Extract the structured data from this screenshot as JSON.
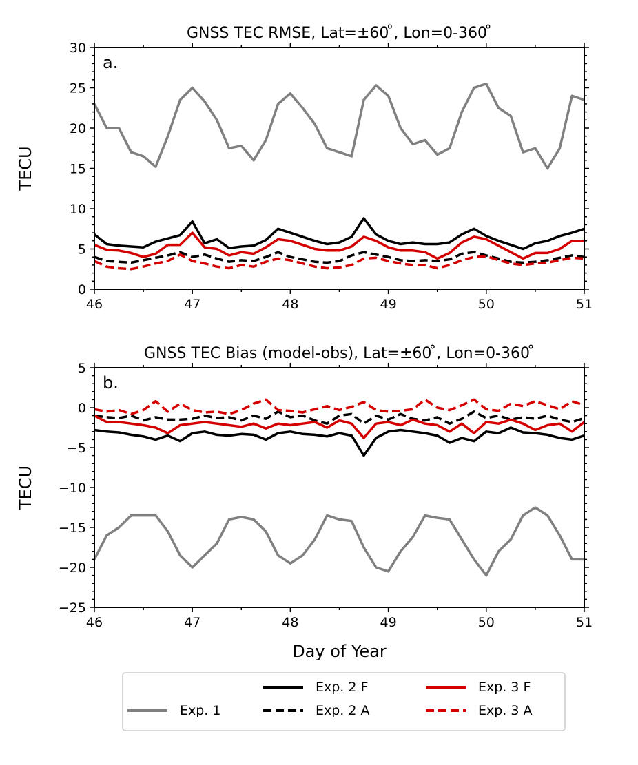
{
  "chart_data": [
    {
      "type": "line",
      "title": "GNSS TEC RMSE, Lat=±60 ̊, Lon=0-360 ̊",
      "panel_label": "a.",
      "xlabel": "",
      "ylabel": "TECU",
      "xlim": [
        46,
        51
      ],
      "ylim": [
        0,
        30
      ],
      "xticks": [
        46,
        47,
        48,
        49,
        50,
        51
      ],
      "yticks": [
        0,
        5,
        10,
        15,
        20,
        25,
        30
      ],
      "grid": false,
      "x": [
        46,
        46.125,
        46.25,
        46.375,
        46.5,
        46.625,
        46.75,
        46.875,
        47,
        47.125,
        47.25,
        47.375,
        47.5,
        47.625,
        47.75,
        47.875,
        48,
        48.125,
        48.25,
        48.375,
        48.5,
        48.625,
        48.75,
        48.875,
        49,
        49.125,
        49.25,
        49.375,
        49.5,
        49.625,
        49.75,
        49.875,
        50,
        50.125,
        50.25,
        50.375,
        50.5,
        50.625,
        50.75,
        50.875,
        51
      ],
      "series": [
        {
          "name": "Exp. 1",
          "color": "#808080",
          "dash": "solid",
          "values": [
            23,
            20,
            20,
            17,
            16.5,
            15.2,
            19,
            23.5,
            25,
            23.3,
            21,
            17.5,
            17.8,
            16,
            18.5,
            23,
            24.3,
            22.5,
            20.5,
            17.5,
            17,
            16.5,
            23.5,
            25.3,
            24,
            20,
            18,
            18.5,
            16.7,
            17.5,
            22,
            25,
            25.5,
            22.5,
            21.5,
            17,
            17.5,
            15,
            17.5,
            24,
            23.5
          ]
        },
        {
          "name": "Exp. 2 F",
          "color": "#000000",
          "dash": "solid",
          "values": [
            6.8,
            5.6,
            5.4,
            5.3,
            5.2,
            5.9,
            6.3,
            6.7,
            8.4,
            5.7,
            6.2,
            5.1,
            5.3,
            5.4,
            6.1,
            7.5,
            7.0,
            6.5,
            6.0,
            5.6,
            5.8,
            6.5,
            8.8,
            6.8,
            6.0,
            5.6,
            5.8,
            5.6,
            5.6,
            5.8,
            6.8,
            7.5,
            6.6,
            6.0,
            5.5,
            5.0,
            5.7,
            6.0,
            6.6,
            7.0,
            7.5
          ]
        },
        {
          "name": "Exp. 2 A",
          "color": "#000000",
          "dash": "dashed",
          "values": [
            4.0,
            3.5,
            3.4,
            3.3,
            3.6,
            3.9,
            4.2,
            4.6,
            4.0,
            4.3,
            3.8,
            3.4,
            3.6,
            3.5,
            4.0,
            4.6,
            4.0,
            3.7,
            3.4,
            3.3,
            3.5,
            4.2,
            4.6,
            4.3,
            4.0,
            3.6,
            3.5,
            3.6,
            3.5,
            3.7,
            4.4,
            4.6,
            4.2,
            3.8,
            3.4,
            3.3,
            3.4,
            3.6,
            3.9,
            4.2,
            4.0
          ]
        },
        {
          "name": "Exp. 3 F",
          "color": "#d40000",
          "dash": "solid",
          "values": [
            5.5,
            4.9,
            4.8,
            4.5,
            4.0,
            4.4,
            5.5,
            5.5,
            7.0,
            5.2,
            5.0,
            4.2,
            4.6,
            4.4,
            5.2,
            6.2,
            6.0,
            5.5,
            5.0,
            4.8,
            4.8,
            5.3,
            6.5,
            6.0,
            5.2,
            4.8,
            4.8,
            4.6,
            3.8,
            4.5,
            5.8,
            6.5,
            6.2,
            5.4,
            4.6,
            3.8,
            4.5,
            4.5,
            5.0,
            6.0,
            6.0
          ]
        },
        {
          "name": "Exp. 3 A",
          "color": "#d40000",
          "dash": "dashed",
          "values": [
            3.5,
            2.8,
            2.6,
            2.5,
            2.8,
            3.2,
            3.5,
            4.3,
            3.5,
            3.2,
            2.8,
            2.6,
            3.0,
            2.8,
            3.4,
            3.8,
            3.6,
            3.2,
            2.8,
            2.6,
            2.7,
            3.0,
            3.8,
            3.9,
            3.5,
            3.2,
            3.0,
            3.0,
            2.6,
            3.0,
            3.6,
            4.0,
            4.1,
            3.6,
            3.2,
            3.0,
            3.2,
            3.3,
            3.6,
            3.9,
            3.8
          ]
        }
      ]
    },
    {
      "type": "line",
      "title": "GNSS TEC Bias (model-obs), Lat=±60 ̊, Lon=0-360 ̊",
      "panel_label": "b.",
      "xlabel": "Day of Year",
      "ylabel": "TECU",
      "xlim": [
        46,
        51
      ],
      "ylim": [
        -25,
        5
      ],
      "xticks": [
        46,
        47,
        48,
        49,
        50,
        51
      ],
      "yticks": [
        -25,
        -20,
        -15,
        -10,
        -5,
        0,
        5
      ],
      "grid": false,
      "x": [
        46,
        46.125,
        46.25,
        46.375,
        46.5,
        46.625,
        46.75,
        46.875,
        47,
        47.125,
        47.25,
        47.375,
        47.5,
        47.625,
        47.75,
        47.875,
        48,
        48.125,
        48.25,
        48.375,
        48.5,
        48.625,
        48.75,
        48.875,
        49,
        49.125,
        49.25,
        49.375,
        49.5,
        49.625,
        49.75,
        49.875,
        50,
        50.125,
        50.25,
        50.375,
        50.5,
        50.625,
        50.75,
        50.875,
        51
      ],
      "series": [
        {
          "name": "Exp. 1",
          "color": "#808080",
          "dash": "solid",
          "values": [
            -19,
            -16,
            -15,
            -13.5,
            -13.5,
            -13.5,
            -15.5,
            -18.5,
            -20,
            -18.5,
            -17,
            -14,
            -13.7,
            -14,
            -15.5,
            -18.5,
            -19.5,
            -18.5,
            -16.5,
            -13.5,
            -14,
            -14.2,
            -17.5,
            -20,
            -20.5,
            -18,
            -16.2,
            -13.5,
            -13.8,
            -14,
            -16.5,
            -19,
            -21,
            -18,
            -16.5,
            -13.5,
            -12.5,
            -13.5,
            -16,
            -19,
            -19
          ]
        },
        {
          "name": "Exp. 2 F",
          "color": "#000000",
          "dash": "solid",
          "values": [
            -2.8,
            -3.0,
            -3.1,
            -3.4,
            -3.6,
            -4.0,
            -3.5,
            -4.2,
            -3.2,
            -3.0,
            -3.4,
            -3.5,
            -3.3,
            -3.4,
            -4.0,
            -3.2,
            -3.0,
            -3.3,
            -3.4,
            -3.6,
            -3.2,
            -3.5,
            -6.0,
            -3.8,
            -3.0,
            -2.8,
            -3.0,
            -3.2,
            -3.5,
            -4.4,
            -3.8,
            -4.2,
            -3.0,
            -3.2,
            -2.5,
            -3.1,
            -3.2,
            -3.4,
            -3.8,
            -4.0,
            -3.5
          ]
        },
        {
          "name": "Exp. 2 A",
          "color": "#000000",
          "dash": "dashed",
          "values": [
            -1.0,
            -1.2,
            -1.3,
            -1.0,
            -1.6,
            -1.2,
            -1.5,
            -1.5,
            -1.4,
            -1.0,
            -1.3,
            -1.2,
            -1.6,
            -1.0,
            -1.4,
            -0.5,
            -1.2,
            -1.0,
            -1.6,
            -2.0,
            -1.0,
            -0.8,
            -2.0,
            -1.0,
            -1.5,
            -0.8,
            -1.4,
            -1.6,
            -1.2,
            -2.0,
            -1.4,
            -0.5,
            -1.3,
            -1.0,
            -1.5,
            -1.2,
            -1.4,
            -1.0,
            -1.5,
            -1.8,
            -1.3
          ]
        },
        {
          "name": "Exp. 3 F",
          "color": "#d40000",
          "dash": "solid",
          "values": [
            -1.0,
            -1.8,
            -1.8,
            -2.0,
            -2.2,
            -2.5,
            -3.2,
            -2.2,
            -2.0,
            -1.8,
            -2.0,
            -2.2,
            -2.4,
            -2.0,
            -2.6,
            -2.0,
            -2.2,
            -2.0,
            -1.8,
            -2.5,
            -1.6,
            -2.0,
            -3.8,
            -2.0,
            -1.8,
            -2.2,
            -1.5,
            -2.0,
            -2.2,
            -3.0,
            -2.0,
            -3.2,
            -1.8,
            -2.0,
            -1.5,
            -2.0,
            -2.8,
            -2.2,
            -2.0,
            -3.0,
            -1.8
          ]
        },
        {
          "name": "Exp. 3 A",
          "color": "#d40000",
          "dash": "dashed",
          "values": [
            -0.2,
            -0.5,
            -0.3,
            -0.8,
            -0.3,
            0.8,
            -0.5,
            0.5,
            -0.3,
            -0.6,
            -0.5,
            -0.8,
            -0.3,
            0.5,
            1.0,
            -0.3,
            -0.4,
            -0.6,
            -0.2,
            0.2,
            -0.3,
            0.1,
            0.7,
            -0.3,
            -0.5,
            -0.4,
            -0.2,
            1.0,
            0.0,
            -0.3,
            0.3,
            1.0,
            -0.2,
            -0.4,
            0.5,
            0.2,
            0.8,
            0.3,
            -0.2,
            0.8,
            0.3
          ]
        }
      ]
    }
  ],
  "legend": {
    "placement": "bottom",
    "entries": [
      {
        "label": "Exp. 1",
        "color": "#808080",
        "dash": "solid"
      },
      {
        "label": "Exp. 2 F",
        "color": "#000000",
        "dash": "solid"
      },
      {
        "label": "Exp. 2 A",
        "color": "#000000",
        "dash": "dashed"
      },
      {
        "label": "Exp. 3 F",
        "color": "#d40000",
        "dash": "solid"
      },
      {
        "label": "Exp. 3 A",
        "color": "#d40000",
        "dash": "dashed"
      }
    ]
  }
}
